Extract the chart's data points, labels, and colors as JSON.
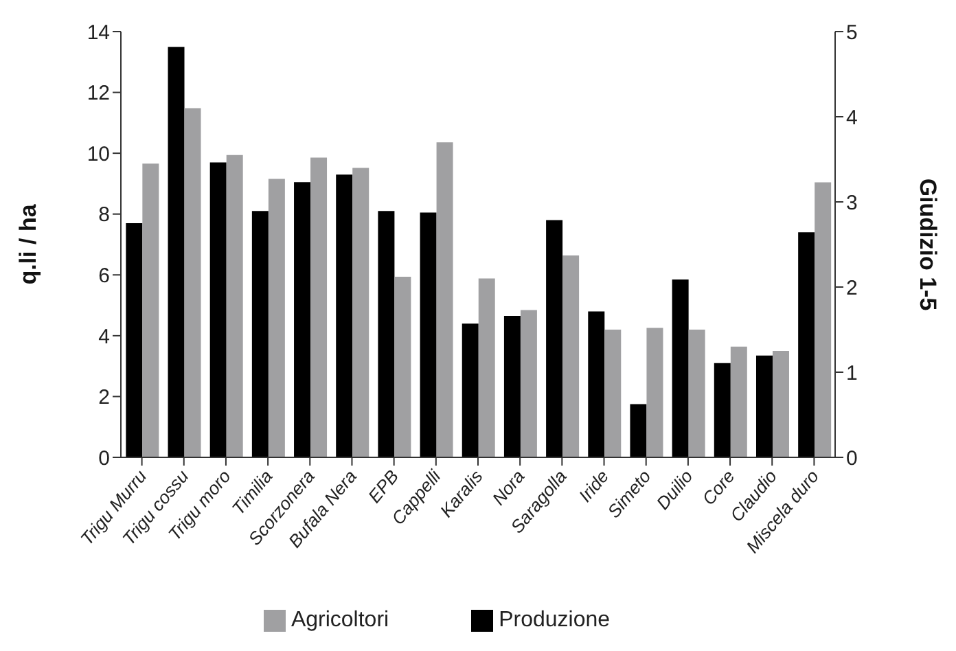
{
  "chart_data": {
    "type": "bar",
    "categories": [
      "Trigu Murru",
      "Trigu cossu",
      "Trigu moro",
      "Timilia",
      "Scorzonera",
      "Bufala Nera",
      "EPB",
      "Cappelli",
      "Karalis",
      "Nora",
      "Saragolla",
      "Iride",
      "Simeto",
      "Duilio",
      "Core",
      "Claudio",
      "Miscela duro"
    ],
    "series": [
      {
        "name": "Produzione",
        "color": "#000000",
        "values": [
          7.7,
          13.5,
          9.7,
          8.1,
          9.05,
          9.3,
          8.1,
          8.05,
          4.4,
          4.65,
          7.8,
          4.8,
          1.75,
          5.85,
          3.1,
          3.35,
          7.4
        ]
      },
      {
        "name": "Agricoltori",
        "color": "#a0a0a2",
        "axis": "y2",
        "values": [
          3.45,
          4.1,
          3.55,
          3.27,
          3.52,
          3.4,
          2.12,
          3.7,
          2.1,
          1.73,
          2.37,
          1.5,
          1.52,
          1.5,
          1.3,
          1.25,
          3.23
        ]
      }
    ],
    "ylabel": "q.li / ha",
    "y2label": "Giudizio 1-5",
    "ylim": [
      0,
      14
    ],
    "yticks": [
      0,
      2,
      4,
      6,
      8,
      10,
      12,
      14
    ],
    "y2lim": [
      0,
      5
    ],
    "y2ticks": [
      0,
      1,
      2,
      3,
      4,
      5
    ],
    "legend": "bottom"
  }
}
